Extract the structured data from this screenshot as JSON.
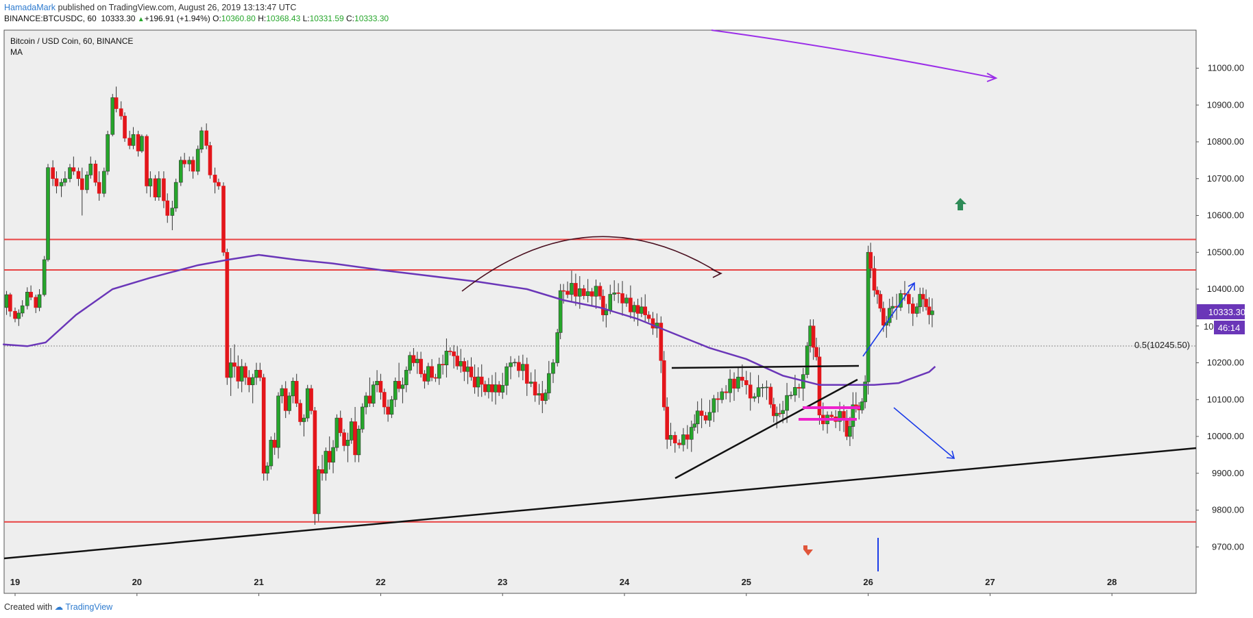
{
  "header": {
    "author": "HamadaMark",
    "published_text": "published on TradingView.com, August 26, 2019 13:13:47 UTC",
    "symbol_text": "BINANCE:BTCUSDC, 60",
    "last_price": "10333.30",
    "change_text": "+196.91 (+1.94%)",
    "o_label": "O:",
    "o_value": "10360.80",
    "h_label": "H:",
    "h_value": "10368.43",
    "l_label": "L:",
    "l_value": "10331.59",
    "c_label": "C:",
    "c_value": "10333.30"
  },
  "legend": {
    "title": "Bitcoin / USD Coin, 60, BINANCE",
    "indicator": "MA"
  },
  "price_tag": {
    "value": "10333.30",
    "timer": "46:14",
    "partial_tick": "10"
  },
  "fib_label": "0.5(10245.50)",
  "footer": {
    "created_with": "Created with",
    "brand": "TradingView"
  },
  "colors": {
    "up": "#26a62b",
    "down": "#e3161b",
    "ma": "#6a36b8",
    "level": "#e84141",
    "tag": "#6a36b8"
  },
  "chart_data": {
    "type": "candlestick",
    "title": "Bitcoin / USD Coin, 60, BINANCE",
    "ylim": [
      9630,
      11100
    ],
    "y_ticks": [
      11000,
      10900,
      10800,
      10700,
      10600,
      10500,
      10400,
      10300,
      10200,
      10100,
      10000,
      9900,
      9800,
      9700
    ],
    "x_ticks": [
      "19",
      "20",
      "21",
      "22",
      "23",
      "24",
      "25",
      "26",
      "27",
      "28"
    ],
    "x_range": [
      18.9,
      28.65
    ],
    "horizontal_levels": [
      10535,
      10452,
      9768
    ],
    "fib_level": 10245.5,
    "ma_points": [
      [
        18.9,
        10250
      ],
      [
        19.1,
        10245
      ],
      [
        19.25,
        10255
      ],
      [
        19.5,
        10330
      ],
      [
        19.8,
        10400
      ],
      [
        20.1,
        10430
      ],
      [
        20.5,
        10465
      ],
      [
        20.75,
        10480
      ],
      [
        21.0,
        10493
      ],
      [
        21.3,
        10480
      ],
      [
        21.6,
        10470
      ],
      [
        22.0,
        10452
      ],
      [
        22.3,
        10440
      ],
      [
        22.8,
        10420
      ],
      [
        23.2,
        10400
      ],
      [
        23.5,
        10370
      ],
      [
        23.8,
        10350
      ],
      [
        24.1,
        10320
      ],
      [
        24.4,
        10280
      ],
      [
        24.7,
        10240
      ],
      [
        25.0,
        10210
      ],
      [
        25.3,
        10165
      ],
      [
        25.6,
        10140
      ],
      [
        25.9,
        10140
      ],
      [
        26.05,
        10140
      ],
      [
        26.25,
        10145
      ],
      [
        26.5,
        10175
      ],
      [
        26.55,
        10190
      ]
    ],
    "candles": [
      [
        18.93,
        10350,
        10395,
        10330,
        10385
      ],
      [
        18.96,
        10385,
        10390,
        10325,
        10340
      ],
      [
        19.0,
        10340,
        10350,
        10310,
        10320
      ],
      [
        19.03,
        10320,
        10345,
        10300,
        10335
      ],
      [
        19.06,
        10335,
        10370,
        10325,
        10355
      ],
      [
        19.1,
        10355,
        10405,
        10345,
        10392
      ],
      [
        19.13,
        10392,
        10410,
        10370,
        10378
      ],
      [
        19.17,
        10378,
        10385,
        10335,
        10350
      ],
      [
        19.2,
        10350,
        10400,
        10340,
        10385
      ],
      [
        19.24,
        10385,
        10490,
        10380,
        10480
      ],
      [
        19.27,
        10480,
        10740,
        10475,
        10730
      ],
      [
        19.31,
        10730,
        10750,
        10680,
        10700
      ],
      [
        19.34,
        10700,
        10720,
        10660,
        10680
      ],
      [
        19.38,
        10680,
        10700,
        10650,
        10690
      ],
      [
        19.41,
        10690,
        10720,
        10680,
        10700
      ],
      [
        19.45,
        10700,
        10740,
        10690,
        10730
      ],
      [
        19.48,
        10730,
        10760,
        10710,
        10720
      ],
      [
        19.52,
        10720,
        10730,
        10680,
        10700
      ],
      [
        19.55,
        10700,
        10730,
        10600,
        10670
      ],
      [
        19.59,
        10670,
        10720,
        10660,
        10710
      ],
      [
        19.62,
        10710,
        10760,
        10700,
        10740
      ],
      [
        19.66,
        10740,
        10750,
        10680,
        10690
      ],
      [
        19.69,
        10690,
        10720,
        10640,
        10660
      ],
      [
        19.73,
        10660,
        10730,
        10650,
        10720
      ],
      [
        19.76,
        10720,
        10830,
        10710,
        10820
      ],
      [
        19.8,
        10820,
        10930,
        10815,
        10920
      ],
      [
        19.83,
        10920,
        10950,
        10880,
        10890
      ],
      [
        19.87,
        10890,
        10910,
        10860,
        10870
      ],
      [
        19.9,
        10870,
        10880,
        10800,
        10810
      ],
      [
        19.94,
        10810,
        10830,
        10780,
        10790
      ],
      [
        19.97,
        10790,
        10840,
        10780,
        10820
      ],
      [
        20.01,
        10820,
        10830,
        10760,
        10775
      ],
      [
        20.04,
        10775,
        10820,
        10770,
        10815
      ],
      [
        20.08,
        10815,
        10820,
        10660,
        10680
      ],
      [
        20.11,
        10680,
        10720,
        10650,
        10700
      ],
      [
        20.15,
        10700,
        10710,
        10640,
        10650
      ],
      [
        20.18,
        10650,
        10720,
        10640,
        10700
      ],
      [
        20.22,
        10700,
        10720,
        10620,
        10640
      ],
      [
        20.25,
        10640,
        10660,
        10580,
        10600
      ],
      [
        20.29,
        10600,
        10640,
        10560,
        10620
      ],
      [
        20.32,
        10620,
        10700,
        10610,
        10690
      ],
      [
        20.36,
        10690,
        10760,
        10680,
        10750
      ],
      [
        20.39,
        10750,
        10770,
        10730,
        10740
      ],
      [
        20.43,
        10740,
        10760,
        10720,
        10750
      ],
      [
        20.46,
        10750,
        10760,
        10700,
        10720
      ],
      [
        20.5,
        10720,
        10790,
        10710,
        10780
      ],
      [
        20.53,
        10780,
        10840,
        10770,
        10830
      ],
      [
        20.57,
        10830,
        10850,
        10780,
        10790
      ],
      [
        20.6,
        10790,
        10800,
        10700,
        10710
      ],
      [
        20.64,
        10710,
        10730,
        10660,
        10690
      ],
      [
        20.67,
        10690,
        10700,
        10670,
        10680
      ],
      [
        20.71,
        10680,
        10690,
        10490,
        10500
      ],
      [
        20.74,
        10500,
        10510,
        10140,
        10160
      ],
      [
        20.77,
        10160,
        10240,
        10110,
        10200
      ],
      [
        20.8,
        10200,
        10250,
        10160,
        10190
      ],
      [
        20.83,
        10190,
        10220,
        10130,
        10150
      ],
      [
        20.86,
        10150,
        10210,
        10120,
        10190
      ],
      [
        20.89,
        10190,
        10200,
        10140,
        10160
      ],
      [
        20.92,
        10160,
        10180,
        10120,
        10140
      ],
      [
        20.95,
        10140,
        10170,
        10090,
        10160
      ],
      [
        20.98,
        10160,
        10200,
        10140,
        10180
      ],
      [
        21.01,
        10180,
        10200,
        10150,
        10160
      ],
      [
        21.04,
        10160,
        10170,
        9880,
        9900
      ],
      [
        21.07,
        9900,
        9930,
        9880,
        9920
      ],
      [
        21.1,
        9920,
        10000,
        9910,
        9990
      ],
      [
        21.13,
        9990,
        10010,
        9950,
        9970
      ],
      [
        21.16,
        9970,
        10120,
        9940,
        10110
      ],
      [
        21.19,
        10110,
        10140,
        10090,
        10130
      ],
      [
        21.22,
        10130,
        10150,
        10050,
        10070
      ],
      [
        21.25,
        10070,
        10120,
        10060,
        10110
      ],
      [
        21.28,
        10110,
        10160,
        10090,
        10150
      ],
      [
        21.31,
        10150,
        10170,
        10080,
        10090
      ],
      [
        21.34,
        10090,
        10100,
        10030,
        10040
      ],
      [
        21.37,
        10040,
        10060,
        10000,
        10050
      ],
      [
        21.4,
        10050,
        10140,
        10040,
        10130
      ],
      [
        21.43,
        10130,
        10140,
        10060,
        10070
      ],
      [
        21.46,
        10070,
        10080,
        9760,
        9790
      ],
      [
        21.49,
        9790,
        9920,
        9770,
        9910
      ],
      [
        21.52,
        9910,
        9950,
        9880,
        9900
      ],
      [
        21.55,
        9900,
        9970,
        9880,
        9960
      ],
      [
        21.58,
        9960,
        10000,
        9910,
        9930
      ],
      [
        21.61,
        9930,
        9990,
        9900,
        9970
      ],
      [
        21.64,
        9970,
        10060,
        9960,
        10050
      ],
      [
        21.67,
        10050,
        10070,
        10000,
        10010
      ],
      [
        21.7,
        10010,
        10020,
        9960,
        9975
      ],
      [
        21.73,
        9975,
        10010,
        9930,
        9990
      ],
      [
        21.76,
        9990,
        10050,
        9980,
        10040
      ],
      [
        21.79,
        10040,
        10080,
        9930,
        9950
      ],
      [
        21.82,
        9950,
        10030,
        9930,
        10020
      ],
      [
        21.85,
        10020,
        10090,
        10010,
        10080
      ],
      [
        21.88,
        10080,
        10120,
        10060,
        10110
      ],
      [
        21.91,
        10110,
        10160,
        10080,
        10090
      ],
      [
        21.94,
        10090,
        10150,
        10080,
        10140
      ],
      [
        21.97,
        10140,
        10180,
        10120,
        10150
      ],
      [
        22.0,
        10150,
        10170,
        10100,
        10120
      ],
      [
        22.03,
        10120,
        10130,
        10060,
        10080
      ],
      [
        22.06,
        10080,
        10100,
        10040,
        10060
      ],
      [
        22.09,
        10060,
        10110,
        10050,
        10100
      ],
      [
        22.12,
        10100,
        10160,
        10080,
        10150
      ],
      [
        22.15,
        10150,
        10200,
        10120,
        10130
      ],
      [
        22.18,
        10130,
        10160,
        10090,
        10140
      ],
      [
        22.21,
        10140,
        10190,
        10120,
        10180
      ],
      [
        22.24,
        10180,
        10230,
        10170,
        10220
      ],
      [
        22.27,
        10220,
        10240,
        10190,
        10200
      ],
      [
        22.3,
        10200,
        10230,
        10170,
        10210
      ],
      [
        22.33,
        10210,
        10230,
        10160,
        10170
      ],
      [
        22.36,
        10170,
        10180,
        10130,
        10150
      ],
      [
        22.39,
        10150,
        10200,
        10140,
        10190
      ],
      [
        22.42,
        10190,
        10210,
        10150,
        10160
      ]
    ]
  }
}
